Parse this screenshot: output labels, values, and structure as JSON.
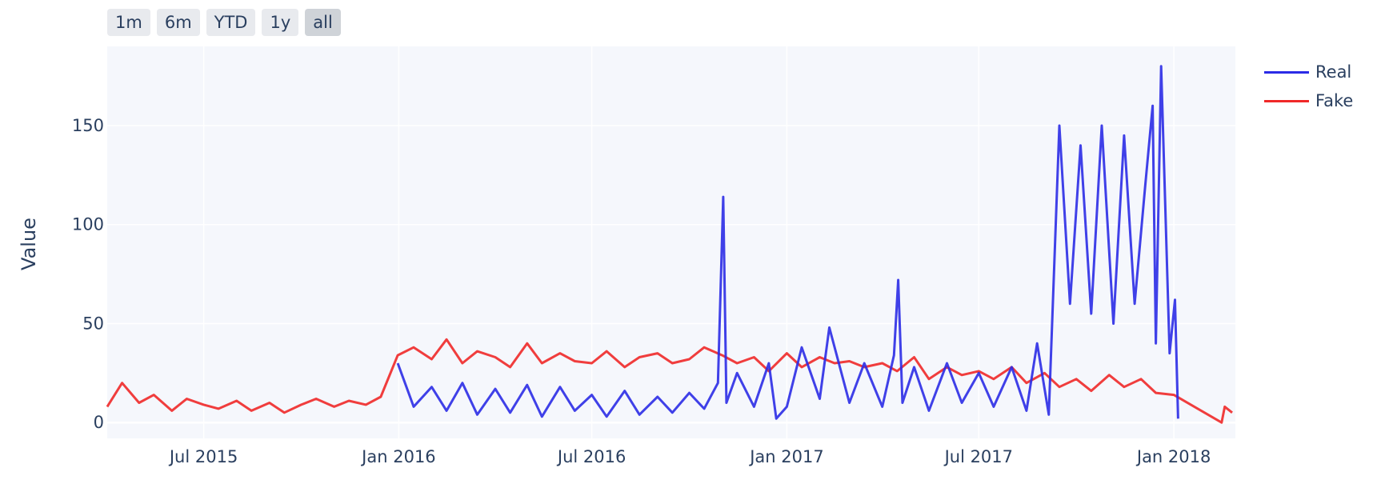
{
  "range_selector": {
    "buttons": [
      {
        "label": "1m",
        "active": false
      },
      {
        "label": "6m",
        "active": false
      },
      {
        "label": "YTD",
        "active": false
      },
      {
        "label": "1y",
        "active": false
      },
      {
        "label": "all",
        "active": true
      }
    ]
  },
  "chart_data": {
    "type": "line",
    "title": "",
    "xlabel": "",
    "ylabel": "Value",
    "xlim": [
      "2015-04-01",
      "2018-02-28"
    ],
    "ylim": [
      -8,
      190
    ],
    "x_ticks": [
      {
        "date": "2015-07-01",
        "label": "Jul 2015"
      },
      {
        "date": "2016-01-01",
        "label": "Jan 2016"
      },
      {
        "date": "2016-07-01",
        "label": "Jul 2016"
      },
      {
        "date": "2017-01-01",
        "label": "Jan 2017"
      },
      {
        "date": "2017-07-01",
        "label": "Jul 2017"
      },
      {
        "date": "2018-01-01",
        "label": "Jan 2018"
      }
    ],
    "y_ticks": [
      0,
      50,
      100,
      150
    ],
    "grid": true,
    "legend_position": "top-right",
    "colors": {
      "plot_bg": "#f5f7fc",
      "grid": "#ffffff",
      "Real": "#2b2be6",
      "Fake": "#f02828"
    },
    "series": [
      {
        "name": "Real",
        "x": [
          "2015-12-31",
          "2016-01-15",
          "2016-02-01",
          "2016-02-15",
          "2016-03-01",
          "2016-03-15",
          "2016-04-01",
          "2016-04-15",
          "2016-05-01",
          "2016-05-15",
          "2016-06-01",
          "2016-06-15",
          "2016-07-01",
          "2016-07-15",
          "2016-08-01",
          "2016-08-15",
          "2016-09-01",
          "2016-09-15",
          "2016-10-01",
          "2016-10-15",
          "2016-10-28",
          "2016-11-02",
          "2016-11-05",
          "2016-11-15",
          "2016-12-01",
          "2016-12-15",
          "2016-12-22",
          "2017-01-01",
          "2017-01-15",
          "2017-02-01",
          "2017-02-10",
          "2017-03-01",
          "2017-03-15",
          "2017-04-01",
          "2017-04-12",
          "2017-04-16",
          "2017-04-20",
          "2017-05-01",
          "2017-05-15",
          "2017-06-01",
          "2017-06-15",
          "2017-07-01",
          "2017-07-15",
          "2017-08-01",
          "2017-08-15",
          "2017-08-25",
          "2017-09-05",
          "2017-09-15",
          "2017-09-25",
          "2017-10-05",
          "2017-10-15",
          "2017-10-25",
          "2017-11-05",
          "2017-11-15",
          "2017-11-25",
          "2017-12-05",
          "2017-12-12",
          "2017-12-15",
          "2017-12-20",
          "2017-12-28",
          "2018-01-02",
          "2018-01-05"
        ],
        "values": [
          30,
          8,
          18,
          6,
          20,
          4,
          17,
          5,
          19,
          3,
          18,
          6,
          14,
          3,
          16,
          4,
          13,
          5,
          15,
          7,
          20,
          114,
          10,
          25,
          8,
          30,
          2,
          8,
          38,
          12,
          48,
          10,
          30,
          8,
          34,
          72,
          10,
          28,
          6,
          30,
          10,
          25,
          8,
          28,
          6,
          40,
          4,
          150,
          60,
          140,
          55,
          150,
          50,
          145,
          60,
          120,
          160,
          40,
          180,
          35,
          62,
          2
        ]
      },
      {
        "name": "Fake",
        "x": [
          "2015-04-01",
          "2015-04-15",
          "2015-05-01",
          "2015-05-15",
          "2015-06-01",
          "2015-06-15",
          "2015-07-01",
          "2015-07-15",
          "2015-08-01",
          "2015-08-15",
          "2015-09-01",
          "2015-09-15",
          "2015-10-01",
          "2015-10-15",
          "2015-11-01",
          "2015-11-15",
          "2015-12-01",
          "2015-12-15",
          "2015-12-31",
          "2016-01-15",
          "2016-02-01",
          "2016-02-15",
          "2016-03-01",
          "2016-03-15",
          "2016-04-01",
          "2016-04-15",
          "2016-05-01",
          "2016-05-15",
          "2016-06-01",
          "2016-06-15",
          "2016-07-01",
          "2016-07-15",
          "2016-08-01",
          "2016-08-15",
          "2016-09-01",
          "2016-09-15",
          "2016-10-01",
          "2016-10-15",
          "2016-11-01",
          "2016-11-15",
          "2016-12-01",
          "2016-12-15",
          "2017-01-01",
          "2017-01-15",
          "2017-02-01",
          "2017-02-15",
          "2017-03-01",
          "2017-03-15",
          "2017-04-01",
          "2017-04-15",
          "2017-05-01",
          "2017-05-15",
          "2017-06-01",
          "2017-06-15",
          "2017-07-01",
          "2017-07-15",
          "2017-08-01",
          "2017-08-15",
          "2017-09-01",
          "2017-09-15",
          "2017-10-01",
          "2017-10-15",
          "2017-11-01",
          "2017-11-15",
          "2017-12-01",
          "2017-12-15",
          "2018-01-01",
          "2018-02-15",
          "2018-02-18",
          "2018-02-25"
        ],
        "values": [
          8,
          20,
          10,
          14,
          6,
          12,
          9,
          7,
          11,
          6,
          10,
          5,
          9,
          12,
          8,
          11,
          9,
          13,
          34,
          38,
          32,
          42,
          30,
          36,
          33,
          28,
          40,
          30,
          35,
          31,
          30,
          36,
          28,
          33,
          35,
          30,
          32,
          38,
          34,
          30,
          33,
          26,
          35,
          28,
          33,
          30,
          31,
          28,
          30,
          26,
          33,
          22,
          28,
          24,
          26,
          22,
          28,
          20,
          25,
          18,
          22,
          16,
          24,
          18,
          22,
          15,
          14,
          0,
          8,
          5
        ]
      }
    ]
  }
}
